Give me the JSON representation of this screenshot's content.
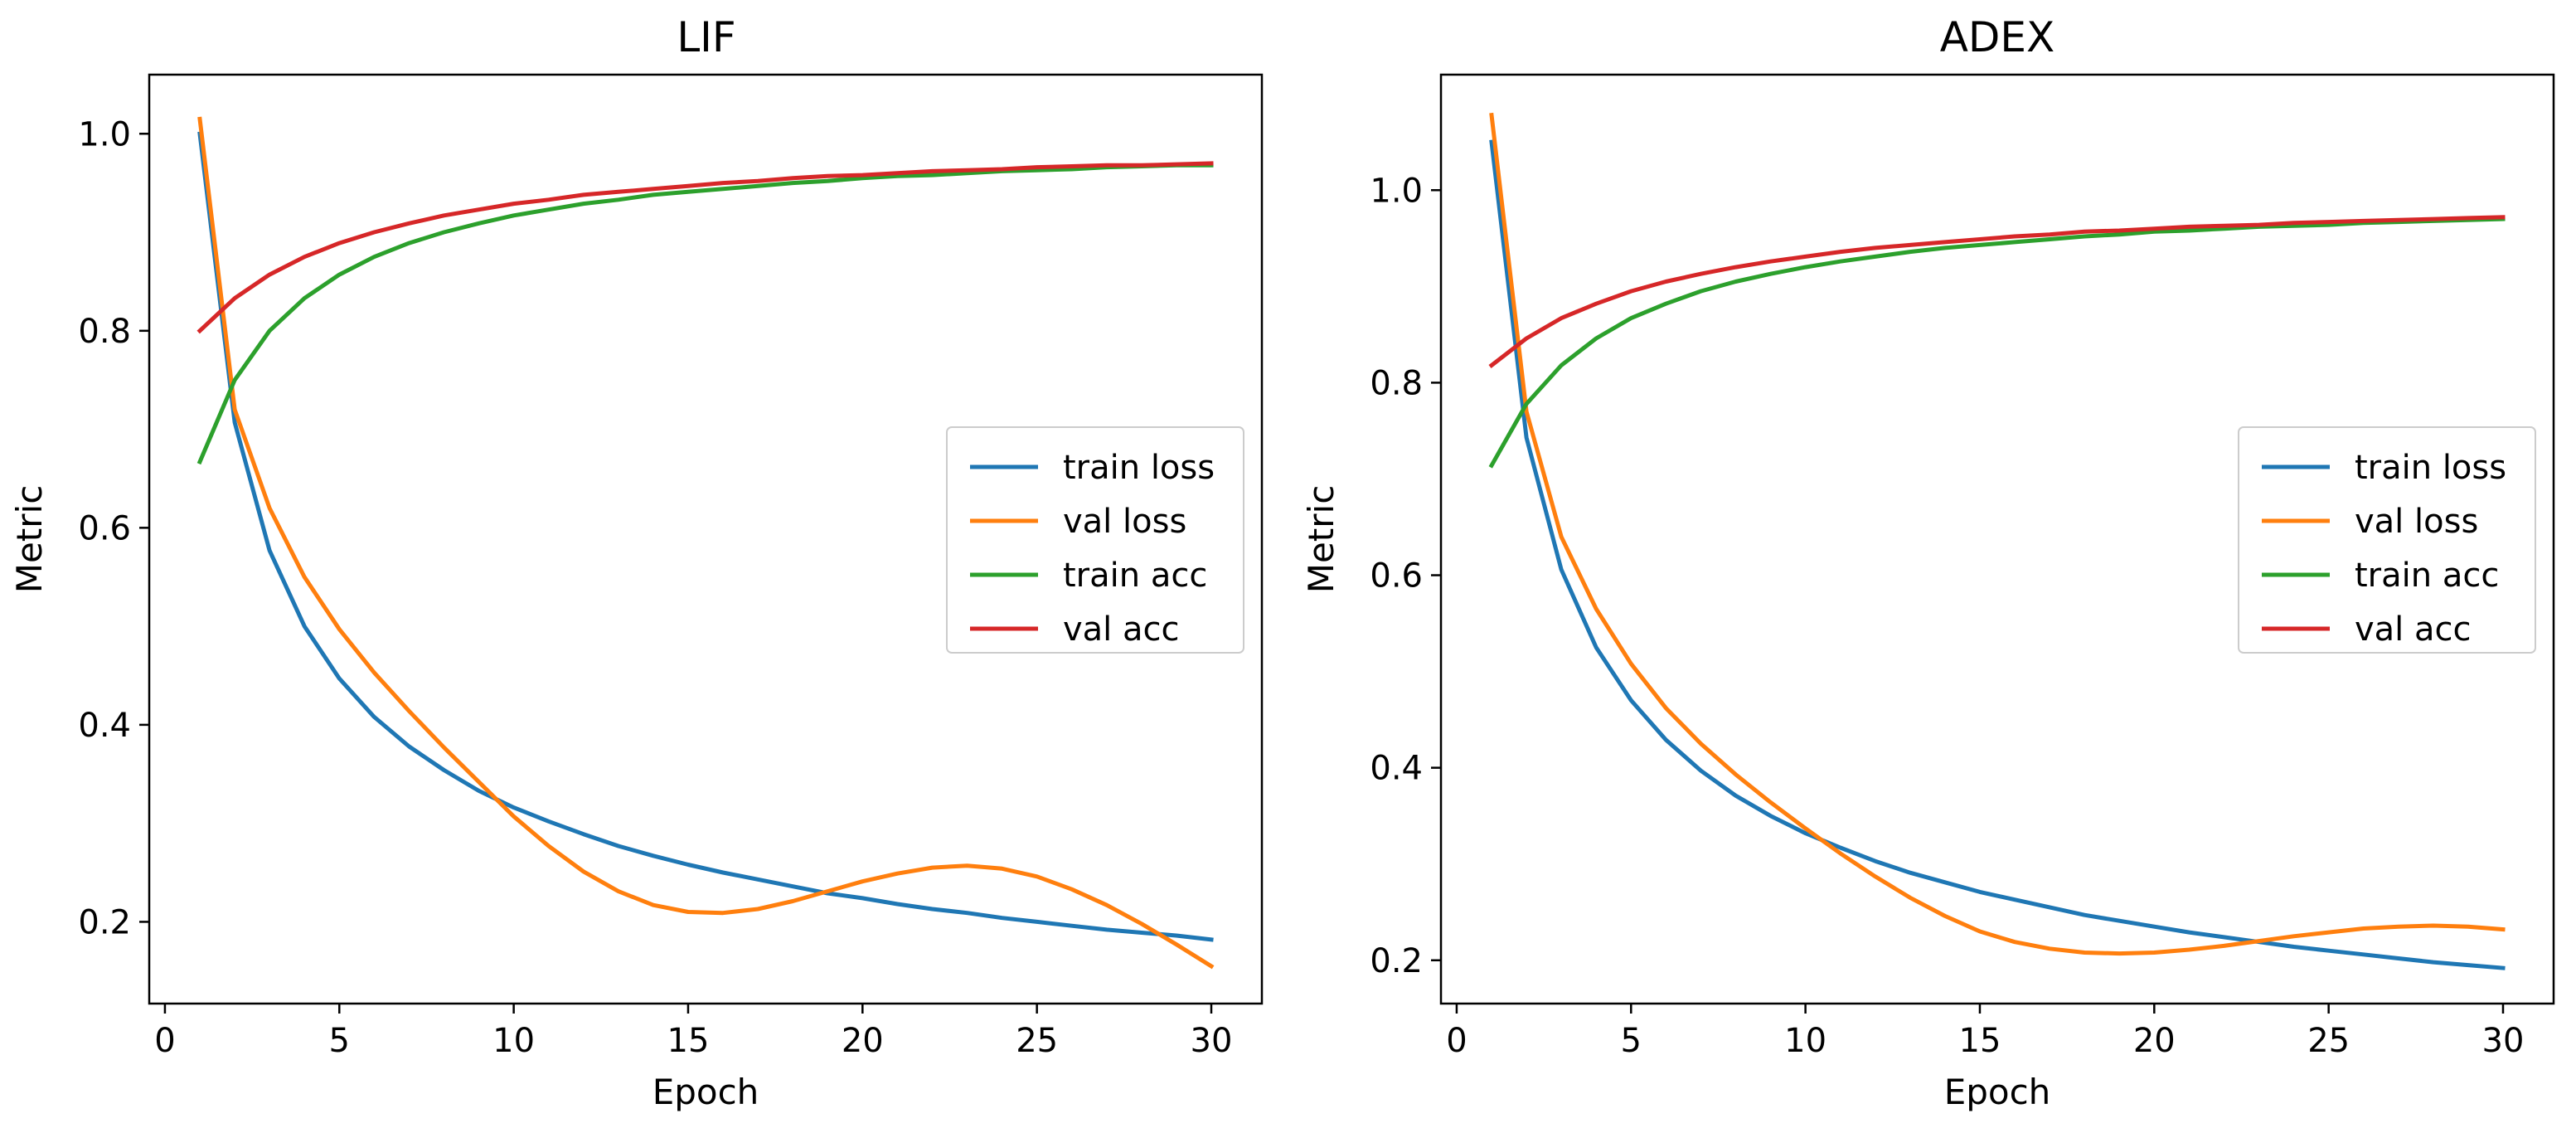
{
  "figure": {
    "series_colors": {
      "train loss": "#1f77b4",
      "val loss": "#ff7f0e",
      "train acc": "#2ca02c",
      "val acc": "#d62728"
    },
    "axes_color": "#000000",
    "background": "#ffffff"
  },
  "chart_data": [
    {
      "type": "line",
      "title": "LIF",
      "xlabel": "Epoch",
      "ylabel": "Metric",
      "xlim": [
        -0.45,
        31.45
      ],
      "ylim": [
        0.117,
        1.06
      ],
      "xticks": [
        0,
        5,
        10,
        15,
        20,
        25,
        30
      ],
      "yticks": [
        0.2,
        0.4,
        0.6,
        0.8,
        1.0
      ],
      "xtick_labels": [
        "0",
        "5",
        "10",
        "15",
        "20",
        "25",
        "30"
      ],
      "ytick_labels": [
        "0.2",
        "0.4",
        "0.6",
        "0.8",
        "1.0"
      ],
      "grid": false,
      "legend_position": "center-right",
      "x": [
        1,
        2,
        3,
        4,
        5,
        6,
        7,
        8,
        9,
        10,
        11,
        12,
        13,
        14,
        15,
        16,
        17,
        18,
        19,
        20,
        21,
        22,
        23,
        24,
        25,
        26,
        27,
        28,
        29,
        30
      ],
      "series": [
        {
          "name": "train loss",
          "color": "#1f77b4",
          "values": [
            1.0,
            0.707,
            0.577,
            0.5,
            0.447,
            0.408,
            0.378,
            0.354,
            0.333,
            0.316,
            0.302,
            0.289,
            0.277,
            0.267,
            0.258,
            0.25,
            0.243,
            0.236,
            0.229,
            0.224,
            0.218,
            0.213,
            0.209,
            0.204,
            0.2,
            0.196,
            0.192,
            0.189,
            0.186,
            0.182
          ]
        },
        {
          "name": "val loss",
          "color": "#ff7f0e",
          "values": [
            1.015,
            0.72,
            0.62,
            0.55,
            0.497,
            0.453,
            0.414,
            0.377,
            0.342,
            0.307,
            0.277,
            0.251,
            0.231,
            0.217,
            0.21,
            0.209,
            0.213,
            0.221,
            0.231,
            0.241,
            0.249,
            0.255,
            0.257,
            0.254,
            0.246,
            0.233,
            0.217,
            0.198,
            0.177,
            0.155
          ]
        },
        {
          "name": "train acc",
          "color": "#2ca02c",
          "values": [
            0.667,
            0.75,
            0.8,
            0.833,
            0.857,
            0.875,
            0.889,
            0.9,
            0.909,
            0.917,
            0.923,
            0.929,
            0.933,
            0.938,
            0.941,
            0.944,
            0.947,
            0.95,
            0.952,
            0.955,
            0.957,
            0.958,
            0.96,
            0.962,
            0.963,
            0.964,
            0.966,
            0.967,
            0.968,
            0.968
          ]
        },
        {
          "name": "val acc",
          "color": "#d62728",
          "values": [
            0.8,
            0.833,
            0.857,
            0.875,
            0.889,
            0.9,
            0.909,
            0.917,
            0.923,
            0.929,
            0.933,
            0.938,
            0.941,
            0.944,
            0.947,
            0.95,
            0.952,
            0.955,
            0.957,
            0.958,
            0.96,
            0.962,
            0.963,
            0.964,
            0.966,
            0.967,
            0.968,
            0.968,
            0.969,
            0.97
          ]
        }
      ]
    },
    {
      "type": "line",
      "title": "ADEX",
      "xlabel": "Epoch",
      "ylabel": "Metric",
      "xlim": [
        -0.45,
        31.45
      ],
      "ylim": [
        0.155,
        1.12
      ],
      "xticks": [
        0,
        5,
        10,
        15,
        20,
        25,
        30
      ],
      "yticks": [
        0.2,
        0.4,
        0.6,
        0.8,
        1.0
      ],
      "xtick_labels": [
        "0",
        "5",
        "10",
        "15",
        "20",
        "25",
        "30"
      ],
      "ytick_labels": [
        "0.2",
        "0.4",
        "0.6",
        "0.8",
        "1.0"
      ],
      "grid": false,
      "legend_position": "center-right",
      "x": [
        1,
        2,
        3,
        4,
        5,
        6,
        7,
        8,
        9,
        10,
        11,
        12,
        13,
        14,
        15,
        16,
        17,
        18,
        19,
        20,
        21,
        22,
        23,
        24,
        25,
        26,
        27,
        28,
        29,
        30
      ],
      "series": [
        {
          "name": "train loss",
          "color": "#1f77b4",
          "values": [
            1.05,
            0.743,
            0.606,
            0.525,
            0.47,
            0.429,
            0.397,
            0.371,
            0.35,
            0.332,
            0.317,
            0.303,
            0.291,
            0.281,
            0.271,
            0.263,
            0.255,
            0.247,
            0.241,
            0.235,
            0.229,
            0.224,
            0.219,
            0.214,
            0.21,
            0.206,
            0.202,
            0.198,
            0.195,
            0.192
          ]
        },
        {
          "name": "val loss",
          "color": "#ff7f0e",
          "values": [
            1.078,
            0.77,
            0.64,
            0.565,
            0.508,
            0.462,
            0.425,
            0.393,
            0.364,
            0.337,
            0.311,
            0.287,
            0.265,
            0.246,
            0.23,
            0.219,
            0.212,
            0.208,
            0.207,
            0.208,
            0.211,
            0.215,
            0.22,
            0.225,
            0.229,
            0.233,
            0.235,
            0.236,
            0.235,
            0.232
          ]
        },
        {
          "name": "train acc",
          "color": "#2ca02c",
          "values": [
            0.714,
            0.778,
            0.818,
            0.846,
            0.867,
            0.882,
            0.895,
            0.905,
            0.913,
            0.92,
            0.926,
            0.931,
            0.936,
            0.94,
            0.943,
            0.946,
            0.949,
            0.952,
            0.954,
            0.957,
            0.958,
            0.96,
            0.962,
            0.963,
            0.964,
            0.966,
            0.967,
            0.968,
            0.969,
            0.97
          ]
        },
        {
          "name": "val acc",
          "color": "#d62728",
          "values": [
            0.818,
            0.846,
            0.867,
            0.882,
            0.895,
            0.905,
            0.913,
            0.92,
            0.926,
            0.931,
            0.936,
            0.94,
            0.943,
            0.946,
            0.949,
            0.952,
            0.954,
            0.957,
            0.958,
            0.96,
            0.962,
            0.963,
            0.964,
            0.966,
            0.967,
            0.968,
            0.969,
            0.97,
            0.971,
            0.972
          ]
        }
      ]
    }
  ]
}
